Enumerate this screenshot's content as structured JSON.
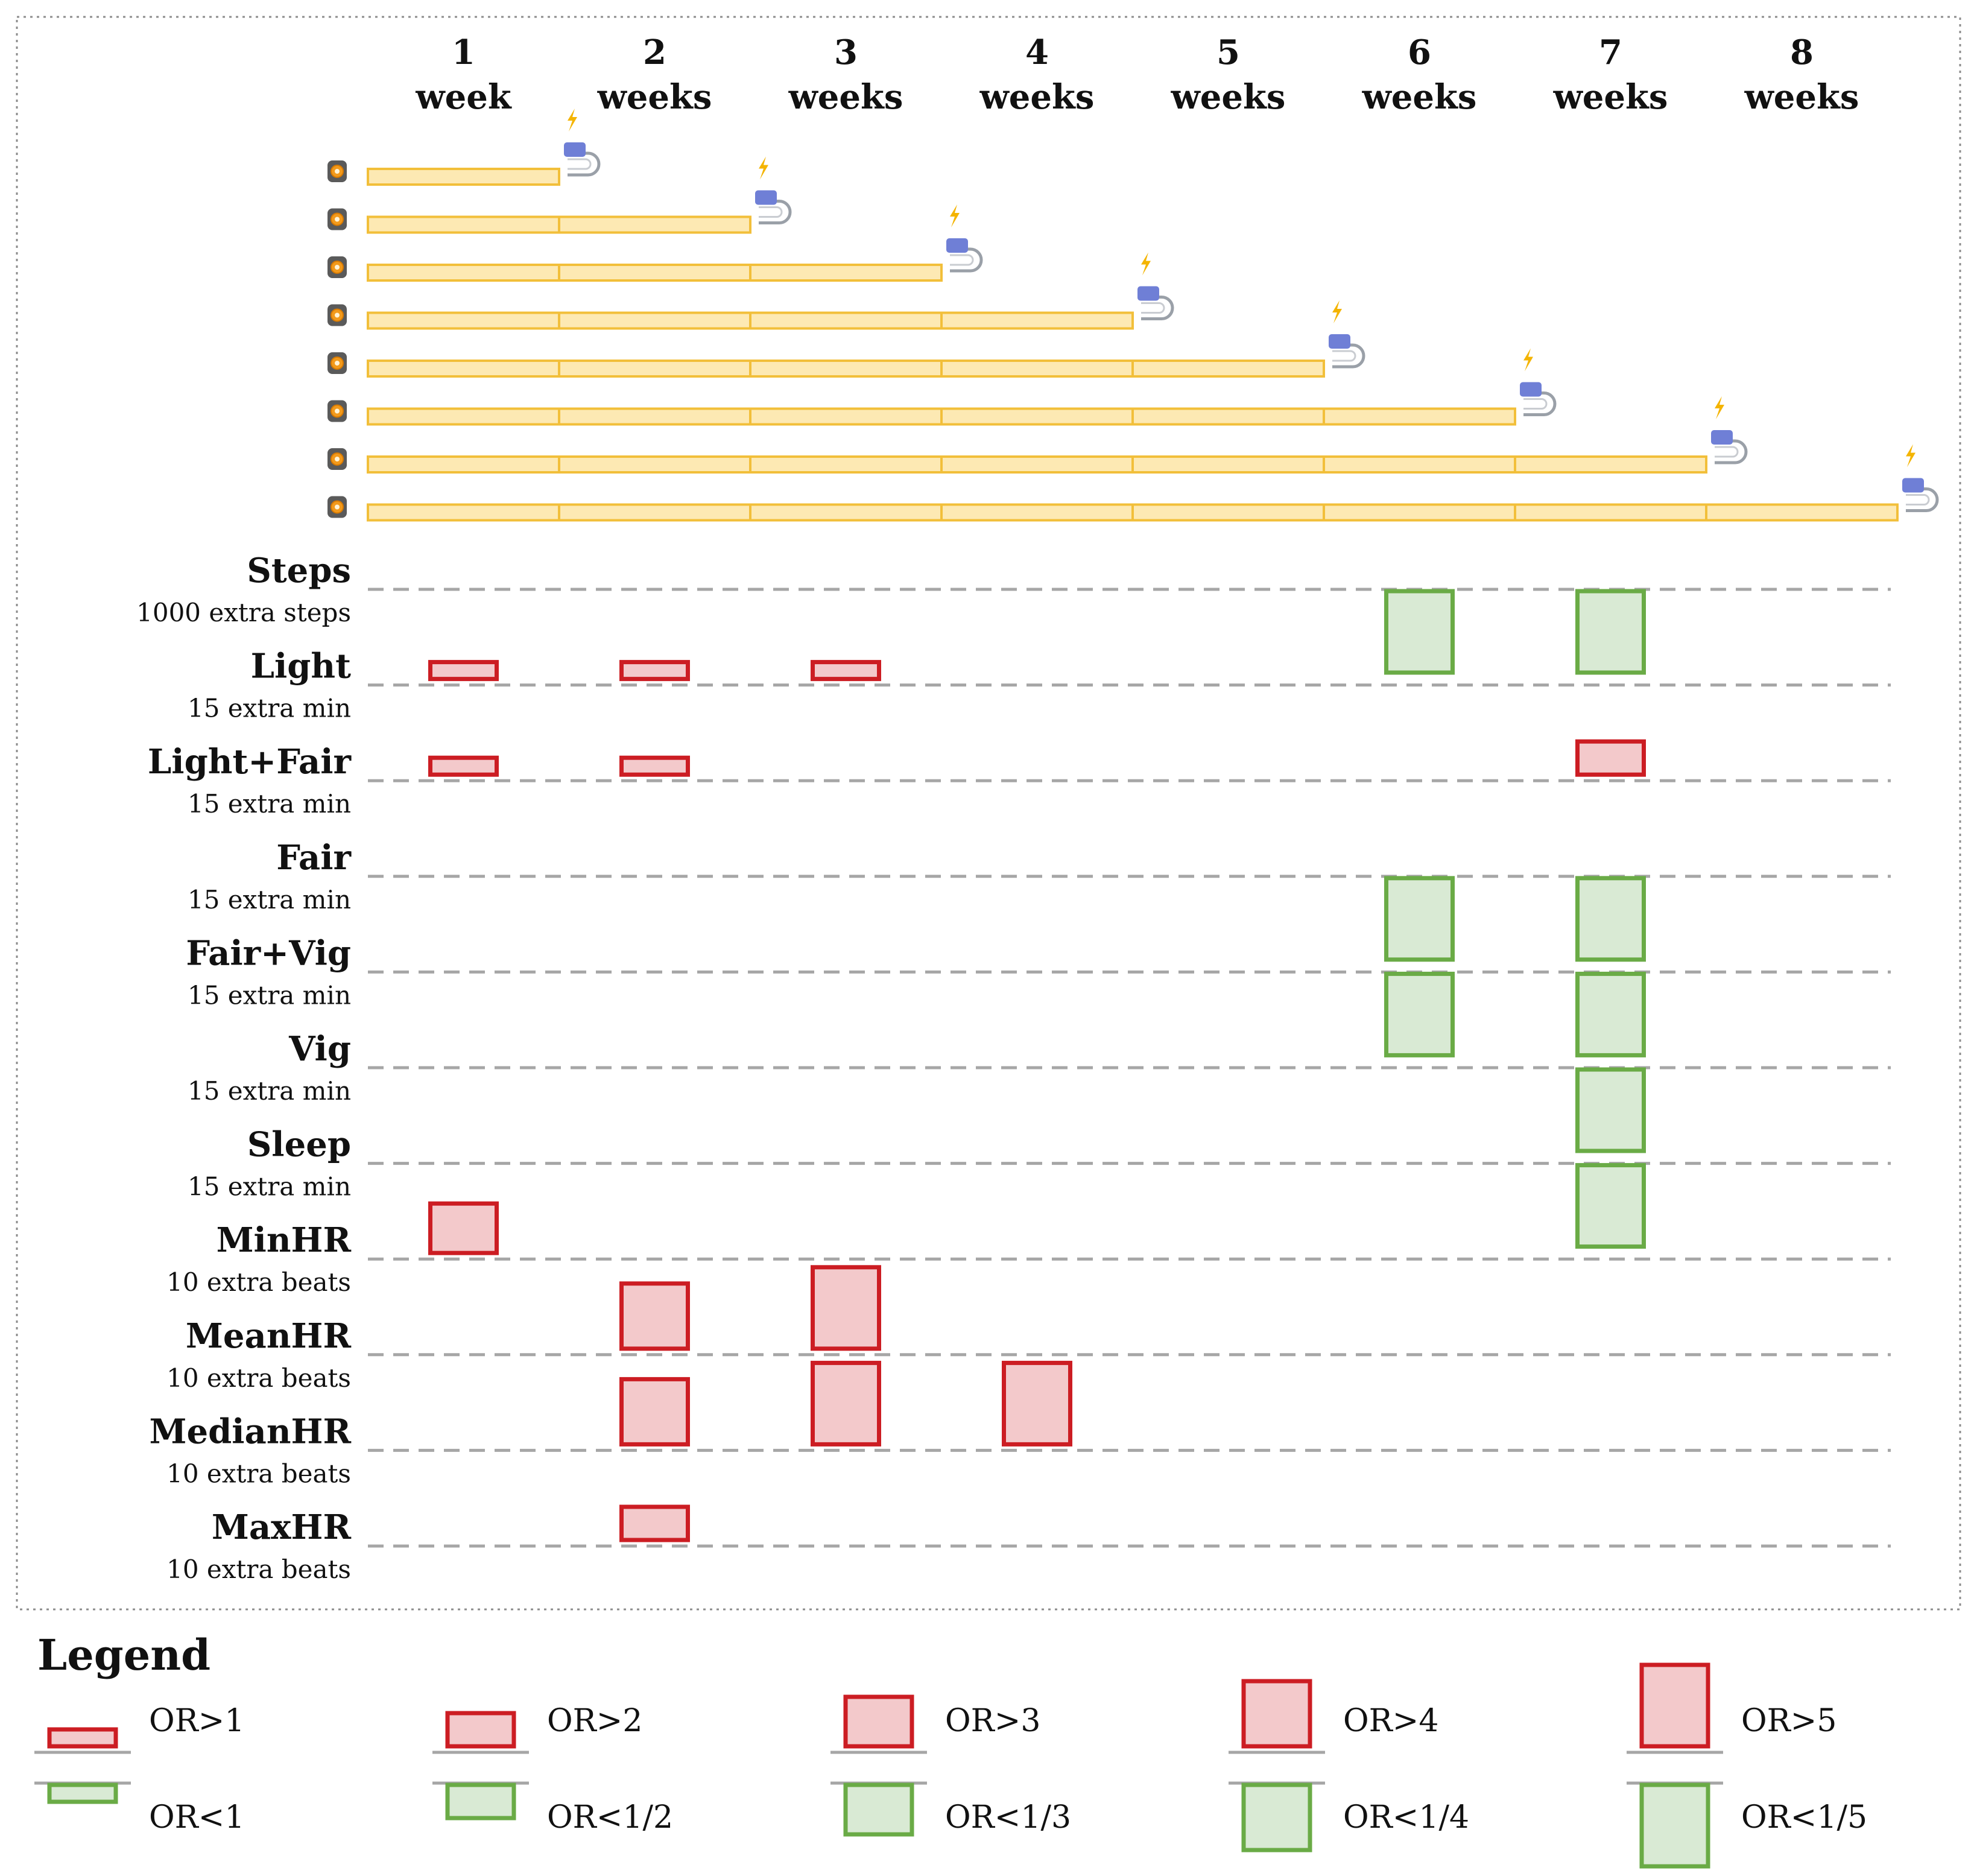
{
  "columns": [
    {
      "num": "1",
      "unit": "week"
    },
    {
      "num": "2",
      "unit": "weeks"
    },
    {
      "num": "3",
      "unit": "weeks"
    },
    {
      "num": "4",
      "unit": "weeks"
    },
    {
      "num": "5",
      "unit": "weeks"
    },
    {
      "num": "6",
      "unit": "weeks"
    },
    {
      "num": "7",
      "unit": "weeks"
    },
    {
      "num": "8",
      "unit": "weeks"
    }
  ],
  "timeline_rows": [
    1,
    2,
    3,
    4,
    5,
    6,
    7,
    8
  ],
  "colors": {
    "bar_fill": "#fde9b3",
    "bar_stroke": "#f2bf3a",
    "red_fill": "#f3c9cb",
    "red_stroke": "#cc1d23",
    "green_fill": "#d9ead4",
    "green_stroke": "#6aab46",
    "dash": "#a6a6a6",
    "bolt": "#f4b400",
    "charger": "#6f7fd6"
  },
  "icons": {
    "watch": "smartwatch-icon",
    "charger": "charger-icon",
    "bolt": "lightning-icon"
  },
  "variables": [
    {
      "name": "Steps",
      "sub": "1000 extra steps"
    },
    {
      "name": "Light",
      "sub": "15 extra min"
    },
    {
      "name": "Light+Fair",
      "sub": "15 extra min"
    },
    {
      "name": "Fair",
      "sub": "15 extra min"
    },
    {
      "name": "Fair+Vig",
      "sub": "15 extra min"
    },
    {
      "name": "Vig",
      "sub": "15 extra min"
    },
    {
      "name": "Sleep",
      "sub": "15 extra min"
    },
    {
      "name": "MinHR",
      "sub": "10 extra beats"
    },
    {
      "name": "MeanHR",
      "sub": "10 extra beats"
    },
    {
      "name": "MedianHR",
      "sub": "10 extra beats"
    },
    {
      "name": "MaxHR",
      "sub": "10 extra beats"
    }
  ],
  "effects": [
    {
      "var": 0,
      "week": 6,
      "dir": "neg",
      "level": 5
    },
    {
      "var": 0,
      "week": 7,
      "dir": "neg",
      "level": 5
    },
    {
      "var": 1,
      "week": 1,
      "dir": "pos",
      "level": 1
    },
    {
      "var": 1,
      "week": 2,
      "dir": "pos",
      "level": 1
    },
    {
      "var": 1,
      "week": 3,
      "dir": "pos",
      "level": 1
    },
    {
      "var": 2,
      "week": 1,
      "dir": "pos",
      "level": 1
    },
    {
      "var": 2,
      "week": 2,
      "dir": "pos",
      "level": 1
    },
    {
      "var": 2,
      "week": 7,
      "dir": "pos",
      "level": 2
    },
    {
      "var": 3,
      "week": 6,
      "dir": "neg",
      "level": 5
    },
    {
      "var": 3,
      "week": 7,
      "dir": "neg",
      "level": 5
    },
    {
      "var": 4,
      "week": 6,
      "dir": "neg",
      "level": 5
    },
    {
      "var": 4,
      "week": 7,
      "dir": "neg",
      "level": 5
    },
    {
      "var": 5,
      "week": 7,
      "dir": "neg",
      "level": 5
    },
    {
      "var": 6,
      "week": 7,
      "dir": "neg",
      "level": 5
    },
    {
      "var": 7,
      "week": 1,
      "dir": "pos",
      "level": 3
    },
    {
      "var": 8,
      "week": 2,
      "dir": "pos",
      "level": 4
    },
    {
      "var": 8,
      "week": 3,
      "dir": "pos",
      "level": 5
    },
    {
      "var": 9,
      "week": 2,
      "dir": "pos",
      "level": 4
    },
    {
      "var": 9,
      "week": 3,
      "dir": "pos",
      "level": 5
    },
    {
      "var": 9,
      "week": 4,
      "dir": "pos",
      "level": 5
    },
    {
      "var": 10,
      "week": 2,
      "dir": "pos",
      "level": 2
    }
  ],
  "legend": {
    "title": "Legend",
    "items": [
      {
        "pos": "OR>1",
        "neg": "OR<1",
        "level": 1
      },
      {
        "pos": "OR>2",
        "neg": "OR<1/2",
        "level": 2
      },
      {
        "pos": "OR>3",
        "neg": "OR<1/3",
        "level": 3
      },
      {
        "pos": "OR>4",
        "neg": "OR<1/4",
        "level": 4
      },
      {
        "pos": "OR>5",
        "neg": "OR<1/5",
        "level": 5
      }
    ]
  }
}
